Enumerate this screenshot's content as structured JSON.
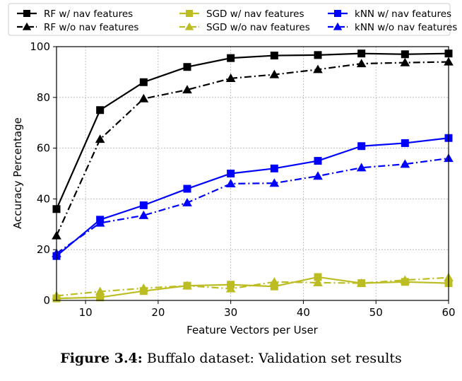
{
  "chart_data": {
    "type": "line",
    "xlabel": "Feature Vectors per User",
    "ylabel": "Accuracy Percentage",
    "xlim": [
      6,
      60
    ],
    "ylim": [
      0,
      100
    ],
    "xticks": [
      10,
      20,
      30,
      40,
      50,
      60
    ],
    "yticks": [
      0,
      20,
      40,
      60,
      80,
      100
    ],
    "grid": true,
    "legend_position": "top (outside plot, 3 columns)",
    "x": [
      6,
      12,
      18,
      24,
      30,
      36,
      42,
      48,
      54,
      60
    ],
    "series": [
      {
        "name": "RF w/ nav features",
        "color": "#000000",
        "marker": "square",
        "linestyle": "solid",
        "values": [
          36,
          75,
          86,
          92,
          95.5,
          96.5,
          96.7,
          97.3,
          97,
          97.3
        ]
      },
      {
        "name": "RF w/o nav features",
        "color": "#000000",
        "marker": "triangle",
        "linestyle": "dashdot",
        "values": [
          25.5,
          63.5,
          79.5,
          83,
          87.5,
          89,
          91,
          93.3,
          93.7,
          94
        ]
      },
      {
        "name": "SGD w/ nav features",
        "color": "#bcbd22",
        "marker": "square",
        "linestyle": "solid",
        "values": [
          0.8,
          1.2,
          3.7,
          5.8,
          6.2,
          5.5,
          9.2,
          6.8,
          7.3,
          6.8
        ]
      },
      {
        "name": "SGD w/o nav features",
        "color": "#bcbd22",
        "marker": "triangle",
        "linestyle": "dashdot",
        "values": [
          1.8,
          3.5,
          4.8,
          5.8,
          4.6,
          7.3,
          7,
          6.8,
          8,
          9
        ]
      },
      {
        "name": "kNN w/ nav features",
        "color": "#0000ff",
        "marker": "square",
        "linestyle": "solid",
        "values": [
          17.5,
          31.8,
          37.5,
          44,
          50,
          52,
          55,
          60.8,
          62,
          64
        ]
      },
      {
        "name": "kNN w/o nav features",
        "color": "#0000ff",
        "marker": "triangle",
        "linestyle": "dashdot",
        "values": [
          18.5,
          30.5,
          33.5,
          38.5,
          46,
          46.2,
          49,
          52.3,
          53.7,
          56
        ]
      }
    ]
  },
  "caption": {
    "label": "Figure 3.4:",
    "text": "Buffalo dataset: Validation set results"
  }
}
